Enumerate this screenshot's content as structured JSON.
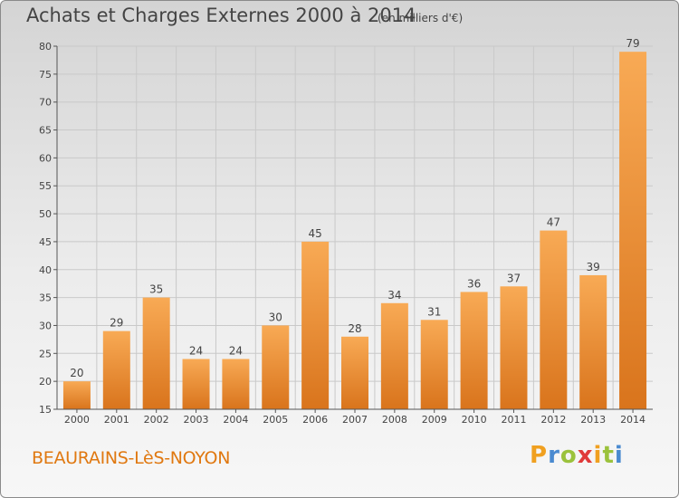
{
  "header": {
    "title": "Achats et Charges Externes 2000 à 2014",
    "subtitle": "(en milliers d'€)"
  },
  "footer": {
    "city": "BEAURAINS-LèS-NOYON",
    "brand": "Proxiti",
    "brand_letter_colors": [
      "#f0a020",
      "#4a8ad0",
      "#9bc23c",
      "#e03a3a",
      "#f0a020",
      "#9bc23c",
      "#4a8ad0"
    ]
  },
  "colors": {
    "bar_light": "#f8aa55",
    "bar_dark": "#d9741c",
    "axis": "#555555",
    "grid": "#c9c9c9"
  },
  "chart_data": {
    "type": "bar",
    "title": "Achats et Charges Externes 2000 à 2014",
    "subtitle": "(en milliers d'€)",
    "xlabel": "",
    "ylabel": "",
    "categories": [
      "2000",
      "2001",
      "2002",
      "2003",
      "2004",
      "2005",
      "2006",
      "2007",
      "2008",
      "2009",
      "2010",
      "2011",
      "2012",
      "2013",
      "2014"
    ],
    "values": [
      20,
      29,
      35,
      24,
      24,
      30,
      45,
      28,
      34,
      31,
      36,
      37,
      47,
      39,
      79
    ],
    "ylim": [
      15,
      80
    ],
    "yticks": [
      15,
      20,
      25,
      30,
      35,
      40,
      45,
      50,
      55,
      60,
      65,
      70,
      75,
      80
    ],
    "grid": true,
    "data_labels": true
  }
}
